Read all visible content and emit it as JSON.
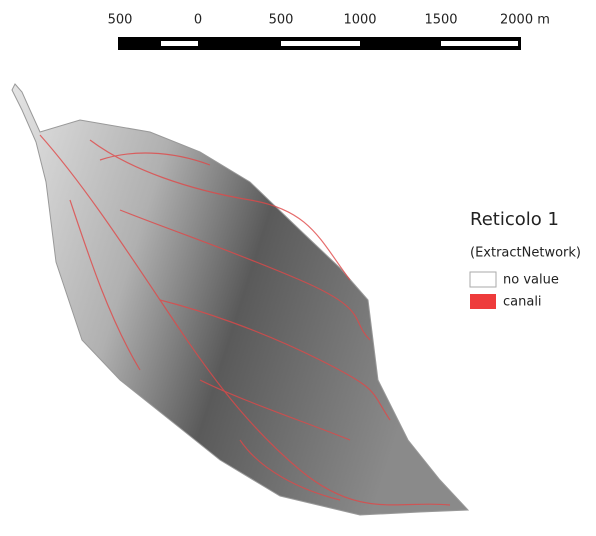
{
  "scale_bar": {
    "labels": [
      "500",
      "0",
      "500",
      "1000",
      "1500",
      "2000 m"
    ]
  },
  "legend": {
    "title": "Reticolo 1",
    "subtitle": "(ExtractNetwork)",
    "items": [
      {
        "label": "no value"
      },
      {
        "label": "canali"
      }
    ]
  }
}
